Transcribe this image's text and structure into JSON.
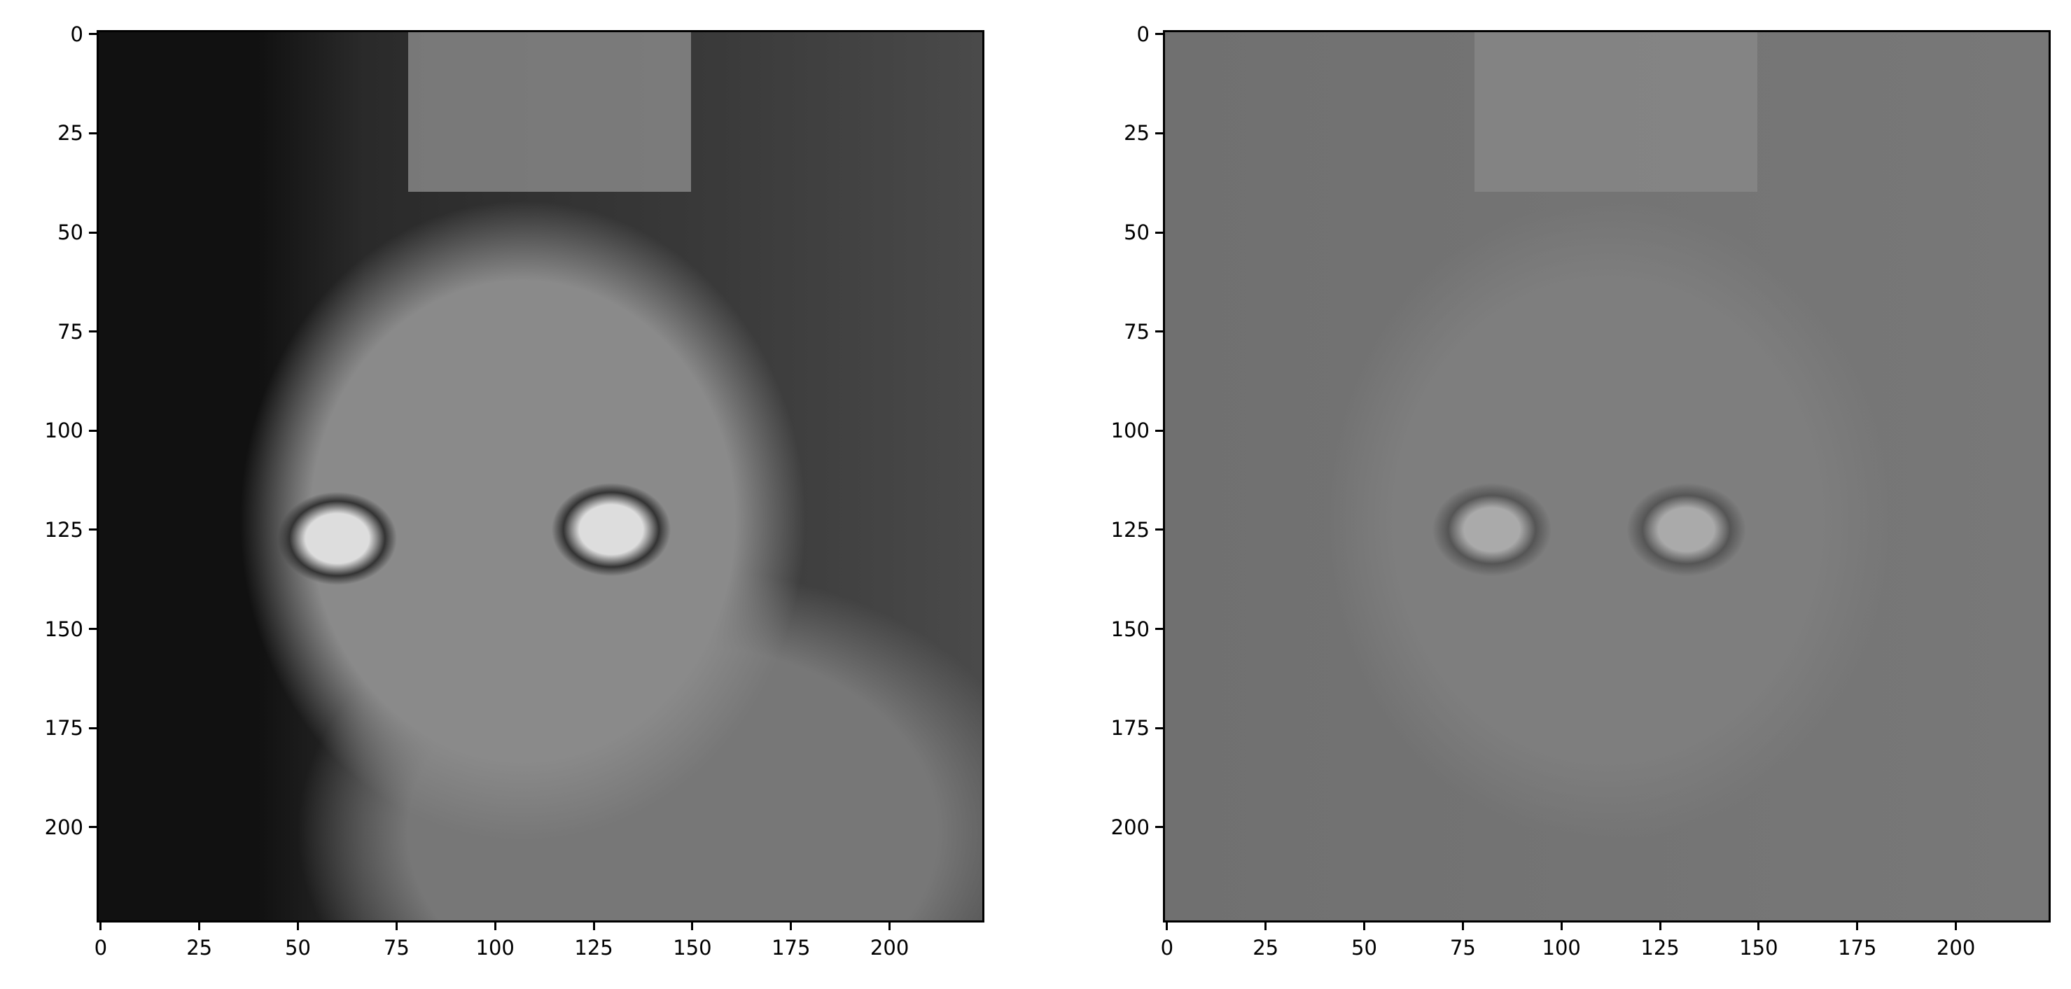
{
  "chart_data": [
    {
      "type": "heatmap",
      "content": "grayscale photo of a tabby cat",
      "colormap": "gray",
      "xlim": [
        -0.5,
        223.5
      ],
      "ylim": [
        223.5,
        -0.5
      ],
      "xticks": [
        0,
        25,
        50,
        75,
        100,
        125,
        150,
        175,
        200
      ],
      "yticks": [
        0,
        25,
        50,
        75,
        100,
        125,
        150,
        175,
        200
      ],
      "xtick_labels": [
        "0",
        "25",
        "50",
        "75",
        "100",
        "125",
        "150",
        "175",
        "200"
      ],
      "ytick_labels": [
        "0",
        "25",
        "50",
        "75",
        "100",
        "125",
        "150",
        "175",
        "200"
      ]
    },
    {
      "type": "heatmap",
      "content": "edge-enhanced (high-pass filtered) grayscale version of the same cat photo",
      "colormap": "gray",
      "xlim": [
        -0.5,
        223.5
      ],
      "ylim": [
        223.5,
        -0.5
      ],
      "xticks": [
        0,
        25,
        50,
        75,
        100,
        125,
        150,
        175,
        200
      ],
      "yticks": [
        0,
        25,
        50,
        75,
        100,
        125,
        150,
        175,
        200
      ],
      "xtick_labels": [
        "0",
        "25",
        "50",
        "75",
        "100",
        "125",
        "150",
        "175",
        "200"
      ],
      "ytick_labels": [
        "0",
        "25",
        "50",
        "75",
        "100",
        "125",
        "150",
        "175",
        "200"
      ]
    }
  ]
}
